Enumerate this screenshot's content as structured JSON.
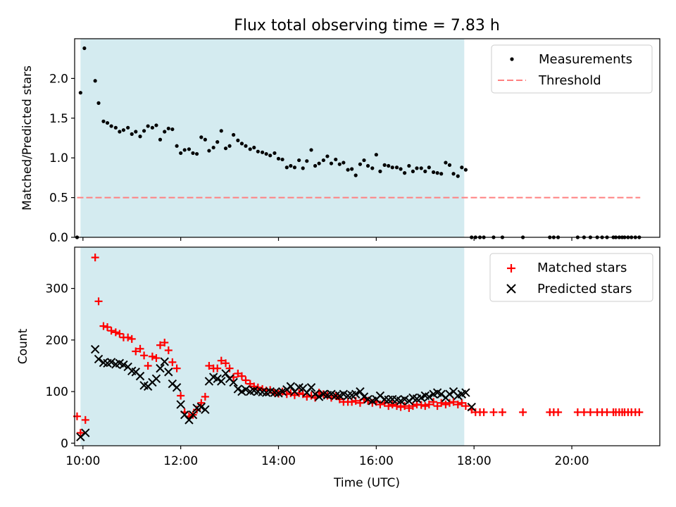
{
  "chart_data": [
    {
      "type": "scatter",
      "title": "Flux total observing time = 7.83 h",
      "ylabel": "Matched/Predicted stars",
      "xlabel": "",
      "xlim": [
        9.83,
        21.8
      ],
      "ylim": [
        0,
        2.5
      ],
      "yticks": [
        "0.0",
        "0.5",
        "1.0",
        "1.5",
        "2.0"
      ],
      "shaded_interval": [
        9.95,
        17.8
      ],
      "shade_color": "#d4ebf0",
      "legend": {
        "placement": "top-right",
        "entries": [
          "Measurements",
          "Threshold"
        ]
      },
      "series": [
        {
          "name": "Measurements",
          "color": "#000000",
          "marker": "dot",
          "x": [
            9.88,
            9.95,
            10.03,
            10.25,
            10.32,
            10.42,
            10.5,
            10.58,
            10.67,
            10.75,
            10.83,
            10.92,
            11.0,
            11.08,
            11.17,
            11.25,
            11.33,
            11.42,
            11.5,
            11.58,
            11.67,
            11.75,
            11.83,
            11.92,
            12.0,
            12.08,
            12.17,
            12.25,
            12.33,
            12.42,
            12.5,
            12.58,
            12.67,
            12.75,
            12.83,
            12.92,
            13.0,
            13.08,
            13.17,
            13.25,
            13.33,
            13.42,
            13.5,
            13.58,
            13.67,
            13.75,
            13.83,
            13.92,
            14.0,
            14.08,
            14.17,
            14.25,
            14.33,
            14.42,
            14.5,
            14.58,
            14.67,
            14.75,
            14.83,
            14.92,
            15.0,
            15.08,
            15.17,
            15.25,
            15.33,
            15.42,
            15.5,
            15.58,
            15.67,
            15.75,
            15.83,
            15.92,
            16.0,
            16.08,
            16.17,
            16.25,
            16.33,
            16.42,
            16.5,
            16.58,
            16.67,
            16.75,
            16.83,
            16.92,
            17.0,
            17.08,
            17.17,
            17.25,
            17.33,
            17.42,
            17.5,
            17.58,
            17.67,
            17.75,
            17.83,
            17.95,
            18.03,
            18.12,
            18.2,
            18.4,
            18.58,
            19.0,
            19.55,
            19.63,
            19.72,
            20.12,
            20.25,
            20.38,
            20.52,
            20.62,
            20.72,
            20.85,
            20.9,
            20.97,
            21.03,
            21.08,
            21.15,
            21.22,
            21.3,
            21.38
          ],
          "y": [
            0.0,
            1.82,
            2.38,
            1.97,
            1.69,
            1.46,
            1.44,
            1.4,
            1.38,
            1.33,
            1.35,
            1.38,
            1.3,
            1.33,
            1.27,
            1.34,
            1.4,
            1.38,
            1.41,
            1.23,
            1.33,
            1.37,
            1.36,
            1.15,
            1.06,
            1.1,
            1.11,
            1.06,
            1.05,
            1.26,
            1.23,
            1.09,
            1.13,
            1.2,
            1.34,
            1.12,
            1.15,
            1.29,
            1.22,
            1.18,
            1.15,
            1.11,
            1.13,
            1.08,
            1.07,
            1.05,
            1.03,
            1.06,
            0.99,
            0.98,
            0.88,
            0.9,
            0.88,
            0.97,
            0.87,
            0.96,
            1.1,
            0.9,
            0.93,
            0.97,
            1.02,
            0.93,
            0.98,
            0.92,
            0.94,
            0.85,
            0.86,
            0.78,
            0.92,
            0.97,
            0.9,
            0.87,
            1.04,
            0.83,
            0.91,
            0.9,
            0.88,
            0.88,
            0.86,
            0.81,
            0.9,
            0.83,
            0.87,
            0.87,
            0.83,
            0.88,
            0.82,
            0.81,
            0.8,
            0.94,
            0.91,
            0.8,
            0.77,
            0.88,
            0.85,
            0.0,
            0.0,
            0.0,
            0.0,
            0.0,
            0.0,
            0.0,
            0.0,
            0.0,
            0.0,
            0.0,
            0.0,
            0.0,
            0.0,
            0.0,
            0.0,
            0.0,
            0.0,
            0.0,
            0.0,
            0.0,
            0.0,
            0.0,
            0.0,
            0.0
          ]
        },
        {
          "name": "Threshold",
          "color": "#ff8080",
          "style": "dashed",
          "x": [
            9.88,
            21.4
          ],
          "y": [
            0.5,
            0.5
          ]
        }
      ]
    },
    {
      "type": "scatter",
      "title": "",
      "xlabel": "Time (UTC)",
      "ylabel": "Count",
      "xlim": [
        9.83,
        21.8
      ],
      "ylim": [
        -5,
        380
      ],
      "xticks": [
        {
          "value": 10,
          "label": "10:00"
        },
        {
          "value": 12,
          "label": "12:00"
        },
        {
          "value": 14,
          "label": "14:00"
        },
        {
          "value": 16,
          "label": "16:00"
        },
        {
          "value": 18,
          "label": "18:00"
        },
        {
          "value": 20,
          "label": "20:00"
        }
      ],
      "yticks": [
        "0",
        "100",
        "200",
        "300"
      ],
      "shaded_interval": [
        9.95,
        17.8
      ],
      "shade_color": "#d4ebf0",
      "legend": {
        "placement": "top-right",
        "entries": [
          "Matched stars",
          "Predicted stars"
        ]
      },
      "series": [
        {
          "name": "Matched stars",
          "color": "#ff0000",
          "marker": "plus",
          "x": [
            9.88,
            9.95,
            10.05,
            10.25,
            10.32,
            10.42,
            10.5,
            10.58,
            10.67,
            10.75,
            10.83,
            10.92,
            11.0,
            11.08,
            11.17,
            11.25,
            11.33,
            11.42,
            11.5,
            11.58,
            11.67,
            11.75,
            11.83,
            11.92,
            12.0,
            12.08,
            12.17,
            12.25,
            12.33,
            12.42,
            12.5,
            12.58,
            12.67,
            12.75,
            12.83,
            12.92,
            13.0,
            13.08,
            13.17,
            13.25,
            13.33,
            13.42,
            13.5,
            13.58,
            13.67,
            13.75,
            13.83,
            13.92,
            14.0,
            14.08,
            14.17,
            14.25,
            14.33,
            14.42,
            14.5,
            14.58,
            14.67,
            14.75,
            14.83,
            14.92,
            15.0,
            15.08,
            15.17,
            15.25,
            15.33,
            15.42,
            15.5,
            15.58,
            15.67,
            15.75,
            15.83,
            15.92,
            16.0,
            16.08,
            16.17,
            16.25,
            16.33,
            16.42,
            16.5,
            16.58,
            16.67,
            16.75,
            16.83,
            16.92,
            17.0,
            17.08,
            17.17,
            17.25,
            17.33,
            17.42,
            17.5,
            17.58,
            17.67,
            17.75,
            17.83,
            17.95,
            18.03,
            18.12,
            18.2,
            18.4,
            18.58,
            19.0,
            19.55,
            19.63,
            19.72,
            20.12,
            20.25,
            20.38,
            20.52,
            20.62,
            20.72,
            20.85,
            20.9,
            20.97,
            21.03,
            21.08,
            21.15,
            21.22,
            21.3,
            21.38
          ],
          "y": [
            52,
            20,
            45,
            360,
            275,
            227,
            225,
            218,
            215,
            212,
            205,
            205,
            202,
            178,
            183,
            170,
            150,
            168,
            165,
            190,
            195,
            180,
            157,
            145,
            92,
            60,
            52,
            55,
            65,
            78,
            90,
            150,
            145,
            145,
            160,
            155,
            145,
            128,
            135,
            130,
            122,
            115,
            110,
            108,
            105,
            102,
            103,
            98,
            96,
            100,
            95,
            97,
            93,
            97,
            95,
            90,
            92,
            88,
            98,
            95,
            92,
            88,
            92,
            85,
            80,
            80,
            80,
            82,
            78,
            85,
            82,
            78,
            80,
            75,
            78,
            72,
            75,
            72,
            70,
            72,
            68,
            72,
            75,
            74,
            72,
            75,
            80,
            72,
            78,
            75,
            78,
            80,
            75,
            78,
            72,
            65,
            60,
            60,
            60,
            60,
            60,
            60,
            60,
            60,
            60,
            60,
            60,
            60,
            60,
            60,
            60,
            60,
            60,
            60,
            60,
            60,
            60,
            60,
            60,
            60
          ]
        },
        {
          "name": "Predicted stars",
          "color": "#000000",
          "marker": "x",
          "x": [
            9.95,
            10.05,
            10.25,
            10.32,
            10.42,
            10.5,
            10.58,
            10.67,
            10.75,
            10.83,
            10.92,
            11.0,
            11.08,
            11.17,
            11.25,
            11.33,
            11.42,
            11.5,
            11.58,
            11.67,
            11.75,
            11.83,
            11.92,
            12.0,
            12.08,
            12.17,
            12.25,
            12.33,
            12.42,
            12.5,
            12.58,
            12.67,
            12.75,
            12.83,
            12.92,
            13.0,
            13.08,
            13.17,
            13.25,
            13.33,
            13.42,
            13.5,
            13.58,
            13.67,
            13.75,
            13.83,
            13.92,
            14.0,
            14.08,
            14.17,
            14.25,
            14.33,
            14.42,
            14.5,
            14.58,
            14.67,
            14.75,
            14.83,
            14.92,
            15.0,
            15.08,
            15.17,
            15.25,
            15.33,
            15.42,
            15.5,
            15.58,
            15.67,
            15.75,
            15.83,
            15.92,
            16.0,
            16.08,
            16.17,
            16.25,
            16.33,
            16.42,
            16.5,
            16.58,
            16.67,
            16.75,
            16.83,
            16.92,
            17.0,
            17.08,
            17.17,
            17.25,
            17.33,
            17.42,
            17.5,
            17.58,
            17.67,
            17.75,
            17.83,
            17.95
          ],
          "y": [
            12,
            20,
            182,
            163,
            156,
            155,
            157,
            153,
            155,
            152,
            148,
            140,
            138,
            130,
            112,
            110,
            118,
            125,
            145,
            158,
            138,
            115,
            108,
            75,
            55,
            45,
            55,
            68,
            70,
            65,
            120,
            128,
            125,
            120,
            135,
            125,
            118,
            105,
            100,
            104,
            100,
            102,
            100,
            99,
            98,
            100,
            98,
            97,
            100,
            104,
            110,
            100,
            108,
            106,
            98,
            108,
            95,
            90,
            95,
            93,
            95,
            92,
            92,
            95,
            92,
            93,
            95,
            100,
            90,
            85,
            82,
            85,
            92,
            85,
            84,
            85,
            84,
            82,
            85,
            82,
            88,
            86,
            88,
            92,
            90,
            95,
            98,
            95,
            88,
            95,
            100,
            92,
            95,
            98,
            70
          ]
        }
      ]
    }
  ]
}
